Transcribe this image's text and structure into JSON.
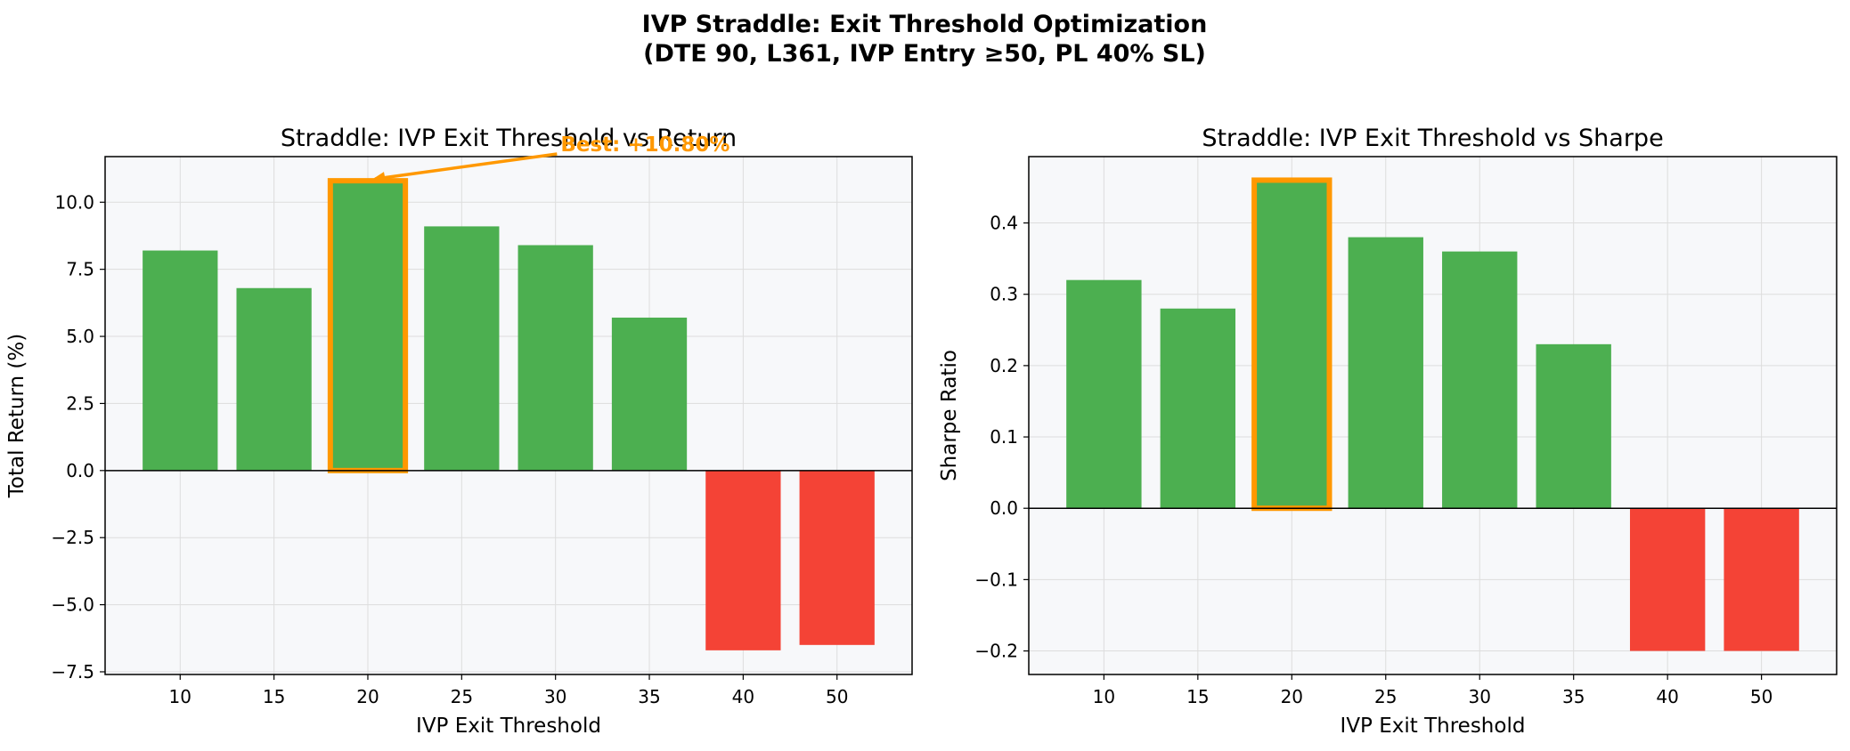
{
  "suptitle": {
    "line1": "IVP Straddle: Exit Threshold Optimization",
    "line2": "(DTE 90, L361, IVP Entry ≥50, PL 40% SL)"
  },
  "colors": {
    "positive": "#4caf50",
    "negative": "#f44336",
    "highlight": "#ff9800",
    "panel_bg": "#f7f8fa",
    "grid": "#dddddd",
    "axis": "#000000"
  },
  "chart_data": [
    {
      "type": "bar",
      "title": "Straddle: IVP Exit Threshold vs Return",
      "xlabel": "IVP Exit Threshold",
      "ylabel": "Total Return (%)",
      "categories": [
        "10",
        "15",
        "20",
        "25",
        "30",
        "35",
        "40",
        "50"
      ],
      "values": [
        8.2,
        6.8,
        10.8,
        9.1,
        8.4,
        5.7,
        -6.7,
        -6.5
      ],
      "ylim": [
        -7.6,
        11.7
      ],
      "yticks": [
        -7.5,
        -5.0,
        -2.5,
        0.0,
        2.5,
        5.0,
        7.5,
        10.0
      ],
      "ytick_labels": [
        "−7.5",
        "−5.0",
        "−2.5",
        "0.0",
        "2.5",
        "5.0",
        "7.5",
        "10.0"
      ],
      "grid": true,
      "highlight_category": "20",
      "annotation": {
        "text": "Best: +10.80%",
        "target_category": "20",
        "target_value": 10.8
      }
    },
    {
      "type": "bar",
      "title": "Straddle: IVP Exit Threshold vs Sharpe",
      "xlabel": "IVP Exit Threshold",
      "ylabel": "Sharpe Ratio",
      "categories": [
        "10",
        "15",
        "20",
        "25",
        "30",
        "35",
        "40",
        "50"
      ],
      "values": [
        0.32,
        0.28,
        0.46,
        0.38,
        0.36,
        0.23,
        -0.2,
        -0.2
      ],
      "ylim": [
        -0.233,
        0.493
      ],
      "yticks": [
        -0.2,
        -0.1,
        0.0,
        0.1,
        0.2,
        0.3,
        0.4
      ],
      "ytick_labels": [
        "−0.2",
        "−0.1",
        "0.0",
        "0.1",
        "0.2",
        "0.3",
        "0.4"
      ],
      "grid": true,
      "highlight_category": "20"
    }
  ]
}
